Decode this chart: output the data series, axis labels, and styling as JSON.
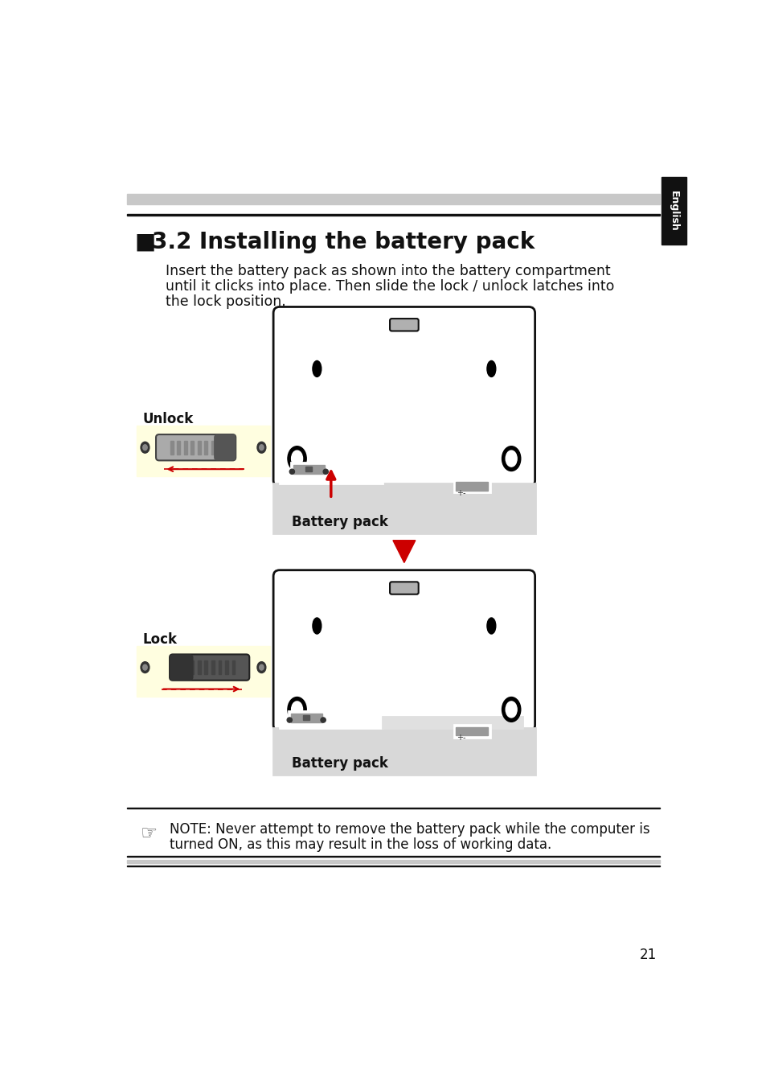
{
  "title": "3.2 Installing the battery pack",
  "description_line1": "Insert the battery pack as shown into the battery compartment",
  "description_line2": "until it clicks into place. Then slide the lock / unlock latches into",
  "description_line3": "the lock position.",
  "unlock_label": "Unlock",
  "lock_label": "Lock",
  "battery_pack_label": "Battery pack",
  "note_line1": "NOTE: Never attempt to remove the battery pack while the computer is",
  "note_line2": "turned ON, as this may result in the loss of working data.",
  "page_number": "21",
  "english_tab": "English",
  "bg_color": "#ffffff",
  "header_gray": "#c8c8c8",
  "latch_bg": "#fffee0",
  "battery_gray": "#d8d8d8",
  "red_color": "#cc0000",
  "dark_color": "#111111",
  "medium_gray": "#888888",
  "slider_light": "#aaaaaa",
  "slider_dark": "#666666"
}
